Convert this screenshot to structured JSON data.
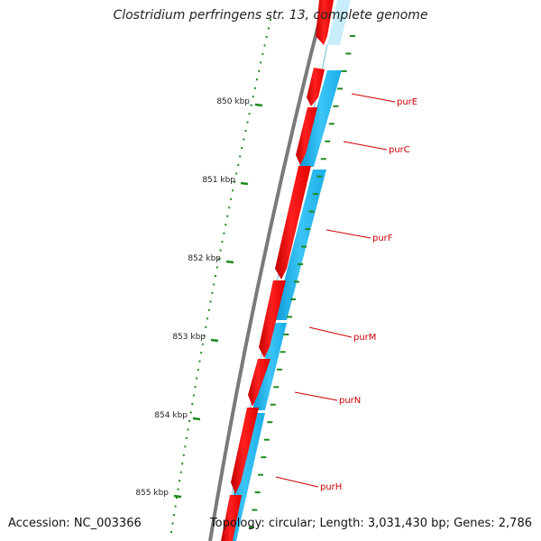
{
  "title": "Clostridium perfringens str. 13, complete genome",
  "footer": {
    "accession": "Accession: NC_003366",
    "topology": "Topology: circular; Length: 3,031,430 bp; Genes: 2,786"
  },
  "ruler": {
    "labels": [
      {
        "label": "850 kbp"
      },
      {
        "label": "851 kbp"
      },
      {
        "label": "852 kbp"
      },
      {
        "label": "853 kbp"
      },
      {
        "label": "854 kbp"
      },
      {
        "label": "855 kbp"
      }
    ]
  },
  "genes": [
    {
      "name": "purE"
    },
    {
      "name": "purC"
    },
    {
      "name": "purF"
    },
    {
      "name": "purM"
    },
    {
      "name": "purN"
    },
    {
      "name": "purH"
    }
  ],
  "colors": {
    "forward_gene": "#ff0000",
    "reverse_gene": "#22b8f0",
    "backbone": "#7a7a7a",
    "ticks": "#1f8a1f",
    "gene_label": "#cc0000"
  }
}
